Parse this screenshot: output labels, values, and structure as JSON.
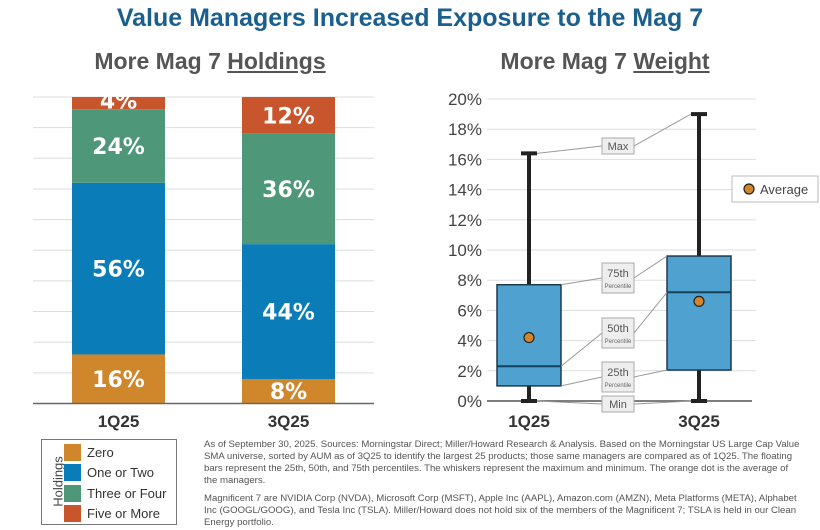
{
  "title": "Value Managers Increased Exposure to the Mag 7",
  "chart_data": [
    {
      "type": "bar",
      "stacked": true,
      "title_prefix": "More Mag 7 ",
      "title_emph": "Holdings",
      "categories": [
        "1Q25",
        "3Q25"
      ],
      "series": [
        {
          "name": "Zero",
          "color": "#d0862a",
          "values": [
            16,
            8
          ]
        },
        {
          "name": "One or Two",
          "color": "#0a7db8",
          "values": [
            56,
            44
          ]
        },
        {
          "name": "Three or Four",
          "color": "#4e9778",
          "values": [
            24,
            36
          ]
        },
        {
          "name": "Five or More",
          "color": "#c8552b",
          "values": [
            4,
            12
          ]
        }
      ],
      "data_labels": [
        [
          "16%",
          "56%",
          "24%",
          "4%"
        ],
        [
          "8%",
          "44%",
          "36%",
          "12%"
        ]
      ],
      "ylim": [
        0,
        100
      ],
      "grid": true,
      "legend_title": "Holdings",
      "legend_position": "bottom-left"
    },
    {
      "type": "box",
      "title_prefix": "More Mag 7 ",
      "title_emph": "Weight",
      "categories": [
        "1Q25",
        "3Q25"
      ],
      "boxes": [
        {
          "min": 0,
          "q1": 1.0,
          "median": 2.3,
          "q3": 7.7,
          "max": 16.4,
          "mean": 4.2
        },
        {
          "min": 0,
          "q1": 2.05,
          "median": 7.2,
          "q3": 9.6,
          "max": 19.0,
          "mean": 6.6
        }
      ],
      "ylim": [
        0,
        20
      ],
      "yticks": [
        "0%",
        "2%",
        "4%",
        "6%",
        "8%",
        "10%",
        "12%",
        "14%",
        "16%",
        "18%",
        "20%"
      ],
      "grid": true,
      "box_color": "#4fa2d0",
      "mean_color": "#d0862a",
      "legend": "Average",
      "legend_position": "right",
      "annotations": [
        {
          "label": "Max",
          "sub": ""
        },
        {
          "label": "75th",
          "sub": "Percentile"
        },
        {
          "label": "50th",
          "sub": "Percentile"
        },
        {
          "label": "25th",
          "sub": "Percentile"
        },
        {
          "label": "Min",
          "sub": ""
        }
      ]
    }
  ],
  "notes": [
    "As of September 30, 2025. Sources: Morningstar Direct; Miller/Howard Research & Analysis. Based on the Morningstar US Large Cap Value SMA universe, sorted by AUM as of 3Q25 to identify the largest 25 products; those same managers are compared as of 1Q25. The floating bars represent the 25th, 50th, and 75th percentiles. The whiskers represent the maximum and minimum. The orange dot is the average of the managers.",
    "Magnificent 7 are NVIDIA Corp (NVDA), Microsoft Corp (MSFT), Apple Inc (AAPL), Amazon.com (AMZN), Meta Platforms (META), Alphabet Inc (GOOGL/GOOG), and Tesla Inc (TSLA). Miller/Howard does not hold six of the members of the Magnificent 7; TSLA is held in our Clean Energy portfolio."
  ]
}
